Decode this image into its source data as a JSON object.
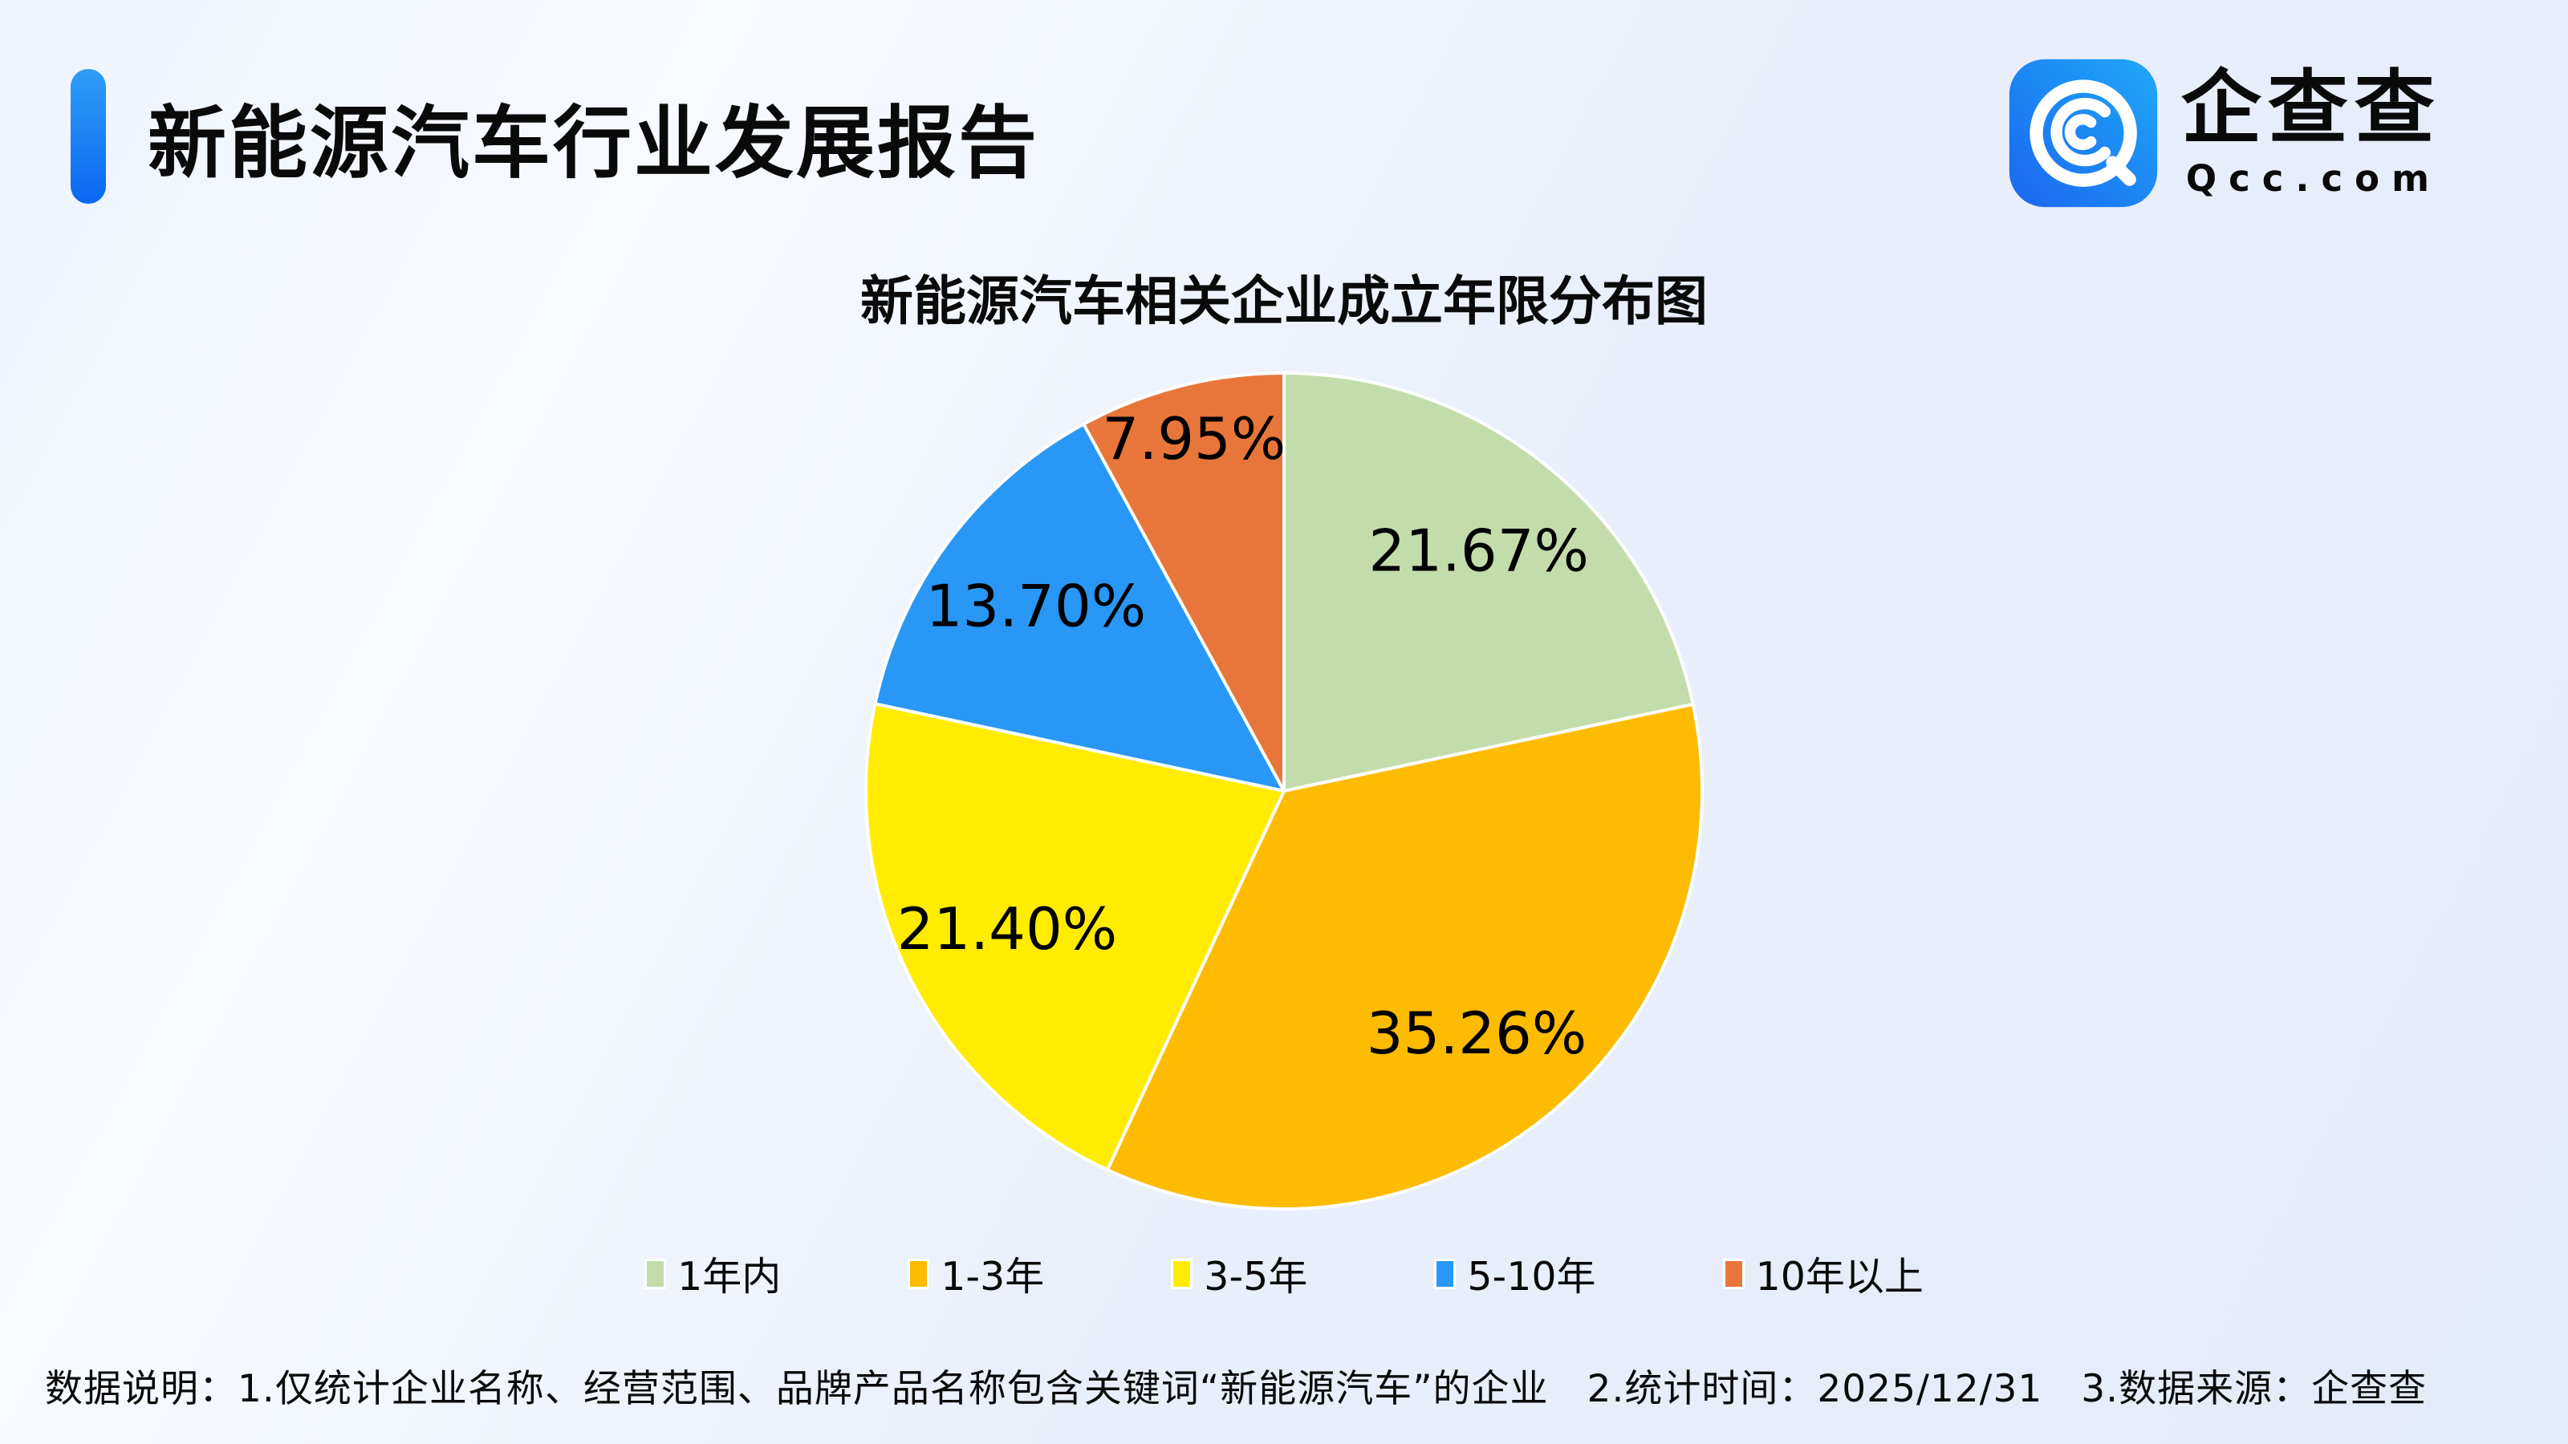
{
  "header": {
    "report_title": "新能源汽车行业发展报告"
  },
  "logo": {
    "name_cn": "企查查",
    "domain": "Qcc.com",
    "icon": "qcc-magnifier-icon",
    "icon_gradient": [
      "#1b66f0",
      "#1ea9f8"
    ]
  },
  "chart_data": {
    "type": "pie",
    "title": "新能源汽车相关企业成立年限分布图",
    "start_angle_deg": 0,
    "direction": "clockwise",
    "legend_position": "bottom",
    "slice_border_color": "#ffffff",
    "slices": [
      {
        "label": "1年内",
        "value": 21.67,
        "display": "21.67%",
        "color": "#c3dcab"
      },
      {
        "label": "1-3年",
        "value": 35.26,
        "display": "35.26%",
        "color": "#fdbb01"
      },
      {
        "label": "3-5年",
        "value": 21.4,
        "display": "21.40%",
        "color": "#ffec00"
      },
      {
        "label": "5-10年",
        "value": 13.7,
        "display": "13.70%",
        "color": "#2997f5"
      },
      {
        "label": "10年以上",
        "value": 7.95,
        "display": "7.95%",
        "color": "#e8763a"
      }
    ]
  },
  "footer": {
    "note": "数据说明：1.仅统计企业名称、经营范围、品牌产品名称包含关键词“新能源汽车”的企业　2.统计时间：2025/12/31　3.数据来源：企查查"
  },
  "colors": {
    "accent_bar_top": "#2f9df7",
    "accent_bar_bottom": "#0a68f2",
    "background": "#ebf1fa",
    "text": "#0a0a0a"
  }
}
